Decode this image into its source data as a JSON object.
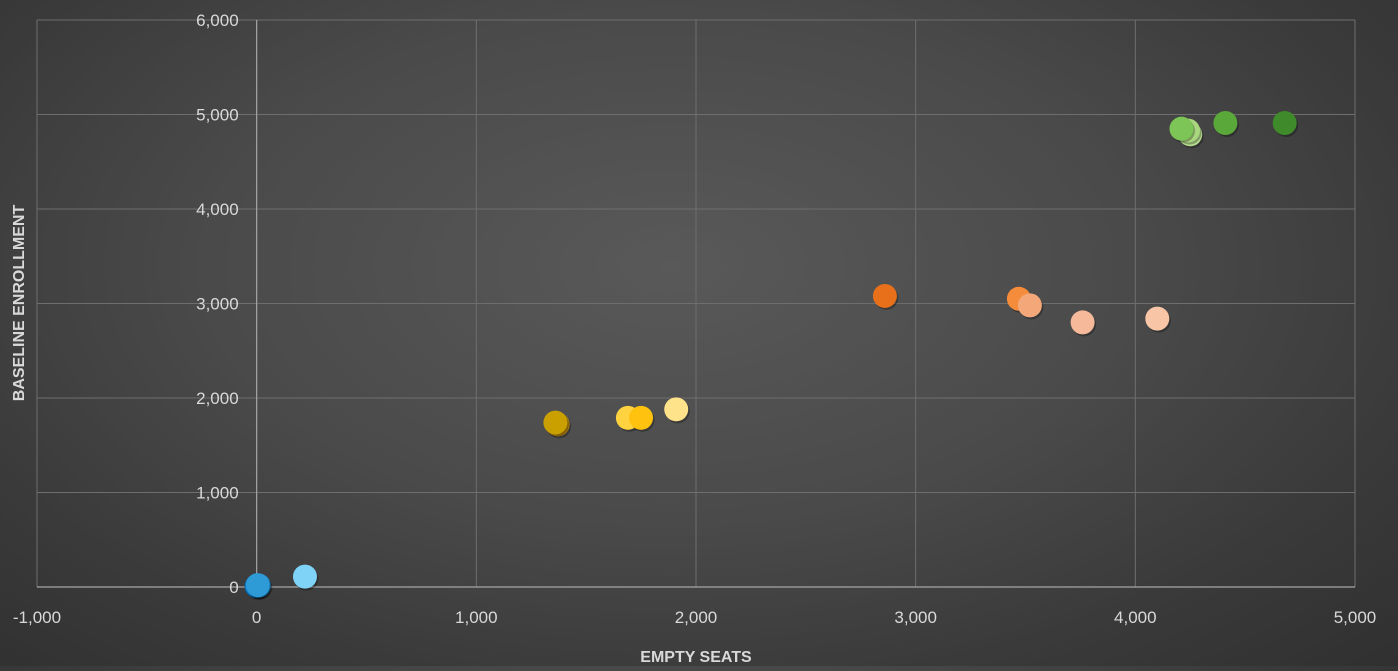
{
  "chart_data": {
    "type": "scatter",
    "title": "",
    "xlabel": "EMPTY SEATS",
    "ylabel": "BASELINE ENROLLMENT",
    "xlim": [
      -1000,
      5000
    ],
    "ylim": [
      0,
      6000
    ],
    "x_ticks": [
      -1000,
      0,
      1000,
      2000,
      3000,
      4000,
      5000
    ],
    "y_ticks": [
      0,
      1000,
      2000,
      3000,
      4000,
      5000,
      6000
    ],
    "x_tick_labels": [
      "-1,000",
      "0",
      "1,000",
      "2,000",
      "3,000",
      "4,000",
      "5,000"
    ],
    "y_tick_labels": [
      "0",
      "1,000",
      "2,000",
      "3,000",
      "4,000",
      "5,000",
      "6,000"
    ],
    "grid": true,
    "legend": "none",
    "points": [
      {
        "x": 0,
        "y": 10,
        "color": "#0070c0"
      },
      {
        "x": 10,
        "y": 15,
        "color": "#1a86c9"
      },
      {
        "x": 5,
        "y": 20,
        "color": "#2e9bd6"
      },
      {
        "x": 220,
        "y": 110,
        "color": "#7fd3f7"
      },
      {
        "x": 1370,
        "y": 1720,
        "color": "#b8860b"
      },
      {
        "x": 1360,
        "y": 1740,
        "color": "#c9a000"
      },
      {
        "x": 1690,
        "y": 1790,
        "color": "#ffd23f"
      },
      {
        "x": 1750,
        "y": 1790,
        "color": "#ffc20e"
      },
      {
        "x": 1910,
        "y": 1880,
        "color": "#ffe38a"
      },
      {
        "x": 2860,
        "y": 3080,
        "color": "#e8701a"
      },
      {
        "x": 3470,
        "y": 3050,
        "color": "#f48c3c"
      },
      {
        "x": 3520,
        "y": 2980,
        "color": "#f4a87a"
      },
      {
        "x": 3760,
        "y": 2800,
        "color": "#f6b999"
      },
      {
        "x": 4100,
        "y": 2840,
        "color": "#f8c6a6"
      },
      {
        "x": 4250,
        "y": 4790,
        "color": "#b5dc8e"
      },
      {
        "x": 4240,
        "y": 4830,
        "color": "#a8d67e"
      },
      {
        "x": 4210,
        "y": 4850,
        "color": "#7cc556"
      },
      {
        "x": 4410,
        "y": 4910,
        "color": "#5aa83a"
      },
      {
        "x": 4680,
        "y": 4910,
        "color": "#3f8a2a"
      }
    ]
  }
}
